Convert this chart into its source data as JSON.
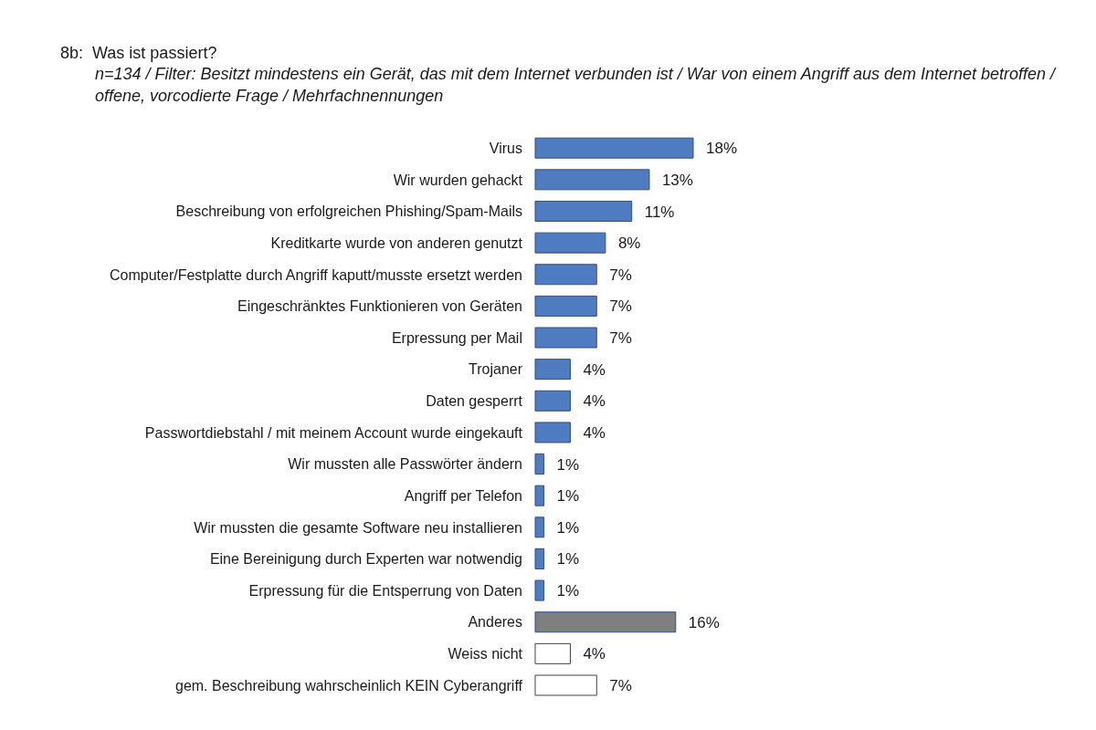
{
  "chart_data": {
    "type": "bar",
    "orientation": "horizontal",
    "title": "8b:  Was ist passiert?",
    "subtitle": "n=134 / Filter: Besitzt mindestens ein Gerät, das mit dem Internet verbunden ist / War von einem Angriff aus dem Internet betroffen / offene, vorcodierte Frage / Mehrfachnennungen",
    "categories": [
      "Virus",
      "Wir wurden gehackt",
      "Beschreibung von erfolgreichen Phishing/Spam-Mails",
      "Kreditkarte wurde von anderen genutzt",
      "Computer/Festplatte durch Angriff kaputt/musste ersetzt werden",
      "Eingeschränktes Funktionieren von Geräten",
      "Erpressung per Mail",
      "Trojaner",
      "Daten gesperrt",
      "Passwortdiebstahl / mit meinem Account wurde eingekauft",
      "Wir mussten alle Passwörter ändern",
      "Angriff per Telefon",
      "Wir mussten die gesamte Software neu installieren",
      "Eine Bereinigung durch Experten war notwendig",
      "Erpressung für die Entsperrung von Daten",
      "Anderes",
      "Weiss nicht",
      "gem. Beschreibung wahrscheinlich KEIN Cyberangriff"
    ],
    "values": [
      18,
      13,
      11,
      8,
      7,
      7,
      7,
      4,
      4,
      4,
      1,
      1,
      1,
      1,
      1,
      16,
      4,
      7
    ],
    "value_labels": [
      "18%",
      "13%",
      "11%",
      "8%",
      "7%",
      "7%",
      "7%",
      "4%",
      "4%",
      "4%",
      "1%",
      "1%",
      "1%",
      "1%",
      "1%",
      "16%",
      "4%",
      "7%"
    ],
    "colors": [
      "#4f7bc0",
      "#4f7bc0",
      "#4f7bc0",
      "#4f7bc0",
      "#4f7bc0",
      "#4f7bc0",
      "#4f7bc0",
      "#4f7bc0",
      "#4f7bc0",
      "#4f7bc0",
      "#4f7bc0",
      "#4f7bc0",
      "#4f7bc0",
      "#4f7bc0",
      "#4f7bc0",
      "#7f7f7f",
      "#ffffff",
      "#ffffff"
    ],
    "tick_labels": "y"
  }
}
